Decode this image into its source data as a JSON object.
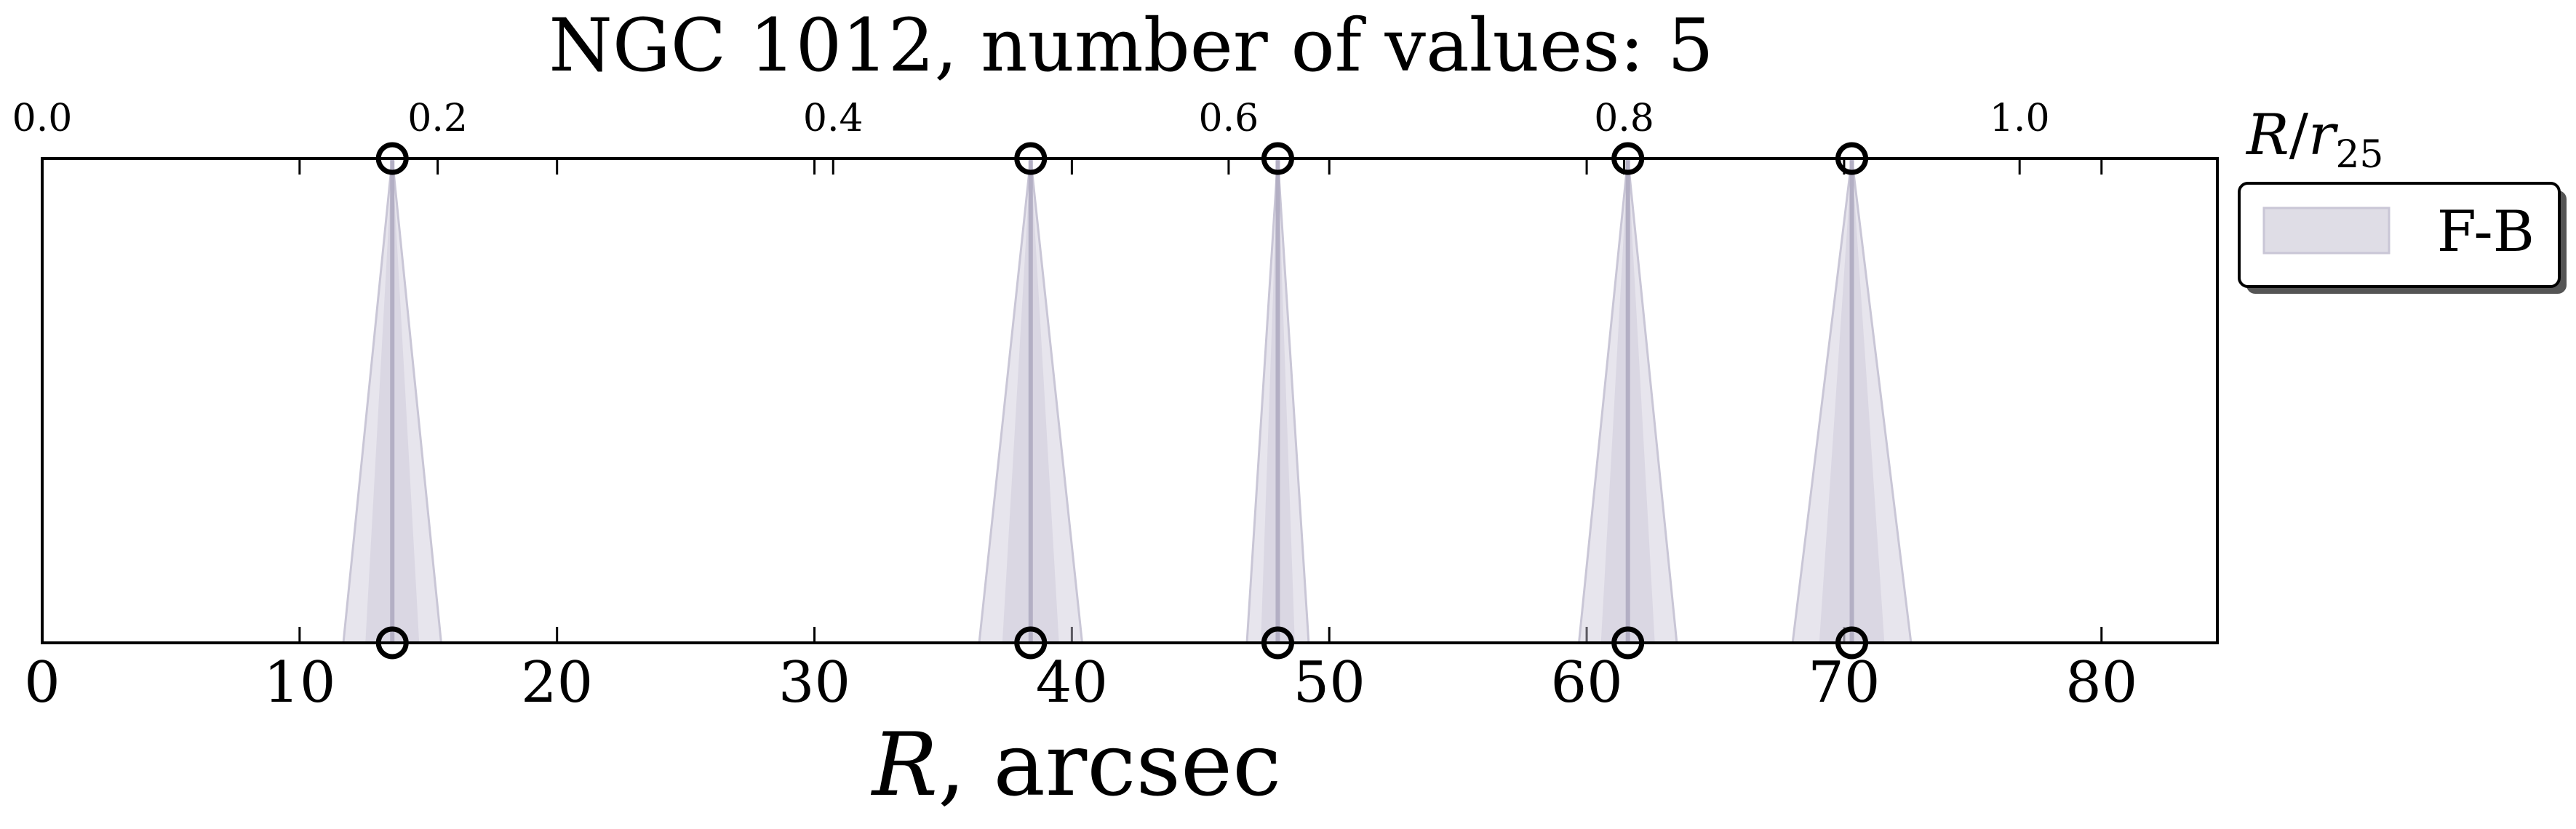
{
  "chart_data": {
    "type": "scatter",
    "title": "NGC 1012, number of values: 5",
    "xlabel": "R, arcsec",
    "xlabel_italic_part": "R",
    "xlabel_rest": ", arcsec",
    "xlim": [
      0,
      84.5
    ],
    "xticks": [
      0,
      10,
      20,
      30,
      40,
      50,
      60,
      70,
      80
    ],
    "xtick_labels": [
      "0",
      "10",
      "20",
      "30",
      "40",
      "50",
      "60",
      "70",
      "80"
    ],
    "top_axis": {
      "label": "R/r25",
      "label_italic_R": "R",
      "label_slash": "/",
      "label_italic_r": "r",
      "label_sub": "25",
      "xlim": [
        0,
        1.1
      ],
      "ticks": [
        0.0,
        0.2,
        0.4,
        0.6,
        0.8,
        1.0
      ],
      "tick_labels": [
        "0.0",
        "0.2",
        "0.4",
        "0.6",
        "0.8",
        "1.0"
      ]
    },
    "grid": false,
    "legend_position": "right-outside",
    "series": [
      {
        "name": "F-B",
        "color": "#c9c6d6",
        "x": [
          13.6,
          38.4,
          48.0,
          61.6,
          70.3
        ],
        "x_spread": [
          1.9,
          2.0,
          1.2,
          1.9,
          2.3
        ]
      }
    ],
    "marker_edge_color": "#000000"
  }
}
